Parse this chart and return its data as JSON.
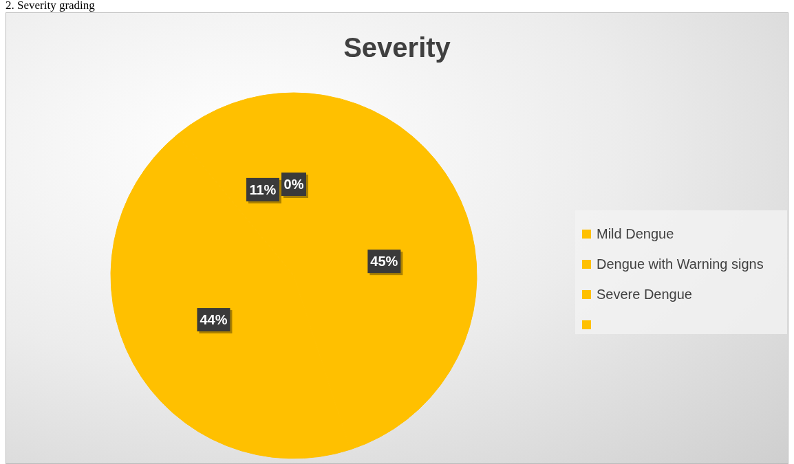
{
  "chart_data": {
    "type": "pie",
    "title": "Severity",
    "annotations": [
      "2.  Severity grading"
    ],
    "categories": [
      "Mild Dengue",
      "Dengue with Warning signs",
      "Severe Dengue",
      null
    ],
    "values": [
      45,
      44,
      11,
      0
    ],
    "colors": [
      "#ffc000",
      "#ffc000",
      "#ffc000",
      "#ffc000"
    ],
    "value_labels": [
      "45%",
      "44%",
      "11%",
      "0%"
    ],
    "legend": "right"
  }
}
